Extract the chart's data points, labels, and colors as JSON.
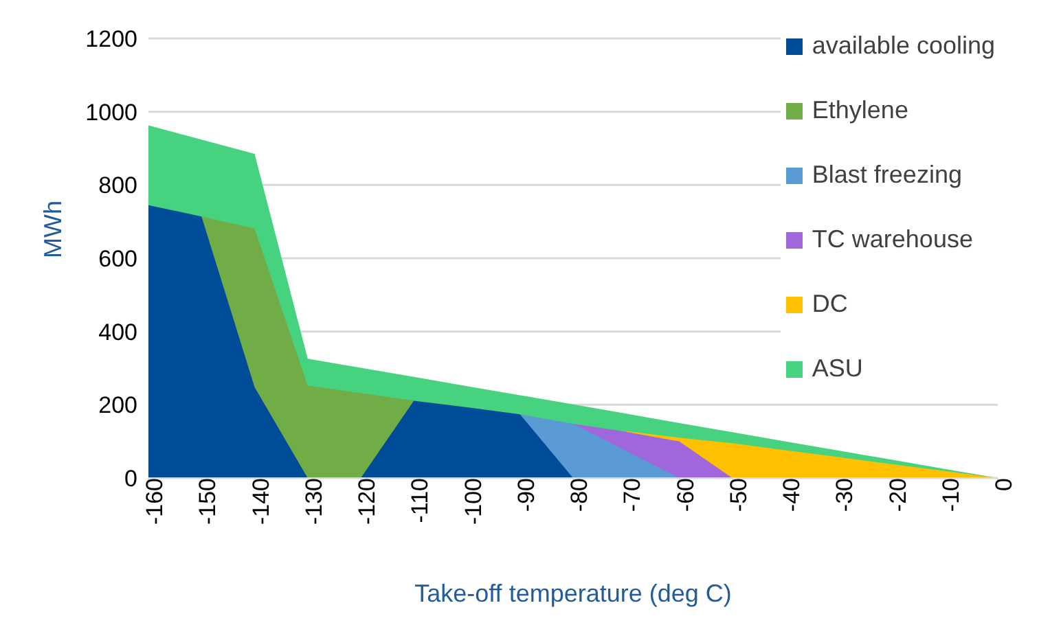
{
  "chart_data": {
    "type": "area",
    "xlabel": "Take-off temperature (deg C)",
    "ylabel": "MWh",
    "x": [
      -160,
      -150,
      -140,
      -130,
      -120,
      -110,
      -100,
      -90,
      -80,
      -70,
      -60,
      -50,
      -40,
      -30,
      -20,
      -10,
      0
    ],
    "xlim": [
      -160,
      0
    ],
    "xticks": [
      -160,
      -150,
      -140,
      -130,
      -120,
      -110,
      -100,
      -90,
      -80,
      -70,
      -60,
      -50,
      -40,
      -30,
      -20,
      -10,
      0
    ],
    "ylim": [
      0,
      1200
    ],
    "yticks": [
      0,
      200,
      400,
      600,
      800,
      1000,
      1200
    ],
    "grid": "y",
    "legend": "top right",
    "series": [
      {
        "name": "ASU",
        "color": "#46d27f",
        "values": [
          963,
          924,
          885,
          326,
          301,
          276,
          251,
          226,
          201,
          176,
          150,
          125,
          100,
          75,
          50,
          25,
          0
        ]
      },
      {
        "name": "DC",
        "color": "#ffc000",
        "values": [
          null,
          null,
          null,
          null,
          null,
          null,
          null,
          null,
          null,
          128,
          110,
          95,
          76,
          57,
          38,
          19,
          0
        ]
      },
      {
        "name": "TC warehouse",
        "color": "#a066db",
        "values": [
          null,
          null,
          null,
          null,
          null,
          null,
          null,
          null,
          148,
          126,
          100,
          0,
          null,
          null,
          null,
          null,
          null
        ]
      },
      {
        "name": "Blast freezing",
        "color": "#5b9bd5",
        "values": [
          null,
          null,
          null,
          null,
          null,
          null,
          null,
          174,
          148,
          74,
          0,
          null,
          null,
          null,
          null,
          null,
          null
        ]
      },
      {
        "name": "Ethylene",
        "color": "#70ad47",
        "values": [
          null,
          714,
          681,
          252,
          232,
          211,
          null,
          null,
          null,
          null,
          null,
          null,
          null,
          null,
          null,
          null,
          null
        ]
      },
      {
        "name": "available cooling",
        "color": "#004c99",
        "values": [
          745,
          714,
          248,
          0,
          0,
          211,
          193,
          174,
          0,
          null,
          null,
          null,
          null,
          null,
          null,
          null,
          null
        ]
      }
    ]
  }
}
